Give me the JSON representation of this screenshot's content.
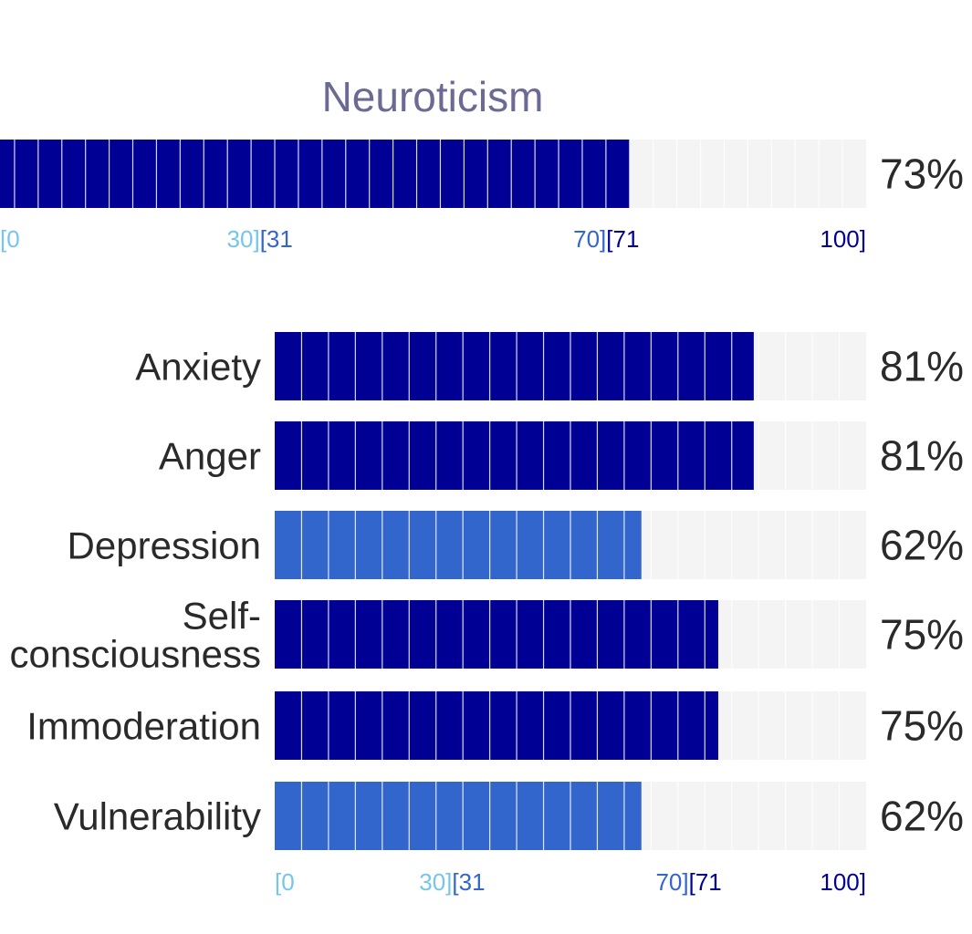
{
  "colors": {
    "low": "#75c6ec",
    "mid": "#3366cc",
    "high": "#000095",
    "track": "#f4f4f4",
    "divider": "#ffffff",
    "title": "#6a6a94",
    "text": "#2a2a2a"
  },
  "chart_data": [
    {
      "type": "bar",
      "orientation": "horizontal",
      "title": "Neuroticism",
      "categories": [
        ""
      ],
      "values": [
        73
      ],
      "value_labels": [
        "73%"
      ],
      "xlim": [
        0,
        100
      ],
      "segments": 37,
      "range_ticks": [
        {
          "text": "[0",
          "band": "low"
        },
        {
          "text": "30]",
          "band": "low"
        },
        {
          "text": "[31",
          "band": "mid"
        },
        {
          "text": "70]",
          "band": "mid"
        },
        {
          "text": "[71",
          "band": "high"
        },
        {
          "text": "100]",
          "band": "high"
        }
      ]
    },
    {
      "type": "bar",
      "orientation": "horizontal",
      "categories": [
        "Anxiety",
        "Anger",
        "Depression",
        "Self-consciousness",
        "Immoderation",
        "Vulnerability"
      ],
      "category_lines": [
        [
          "Anxiety"
        ],
        [
          "Anger"
        ],
        [
          "Depression"
        ],
        [
          "Self-",
          "consciousness"
        ],
        [
          "Immoderation"
        ],
        [
          "Vulnerability"
        ]
      ],
      "values": [
        81,
        81,
        62,
        75,
        75,
        62
      ],
      "value_labels": [
        "81%",
        "81%",
        "62%",
        "75%",
        "75%",
        "62%"
      ],
      "xlim": [
        0,
        100
      ],
      "segments": 22,
      "range_ticks": [
        {
          "text": "[0",
          "band": "low"
        },
        {
          "text": "30]",
          "band": "low"
        },
        {
          "text": "[31",
          "band": "mid"
        },
        {
          "text": "70]",
          "band": "mid"
        },
        {
          "text": "[71",
          "band": "high"
        },
        {
          "text": "100]",
          "band": "high"
        }
      ]
    }
  ]
}
